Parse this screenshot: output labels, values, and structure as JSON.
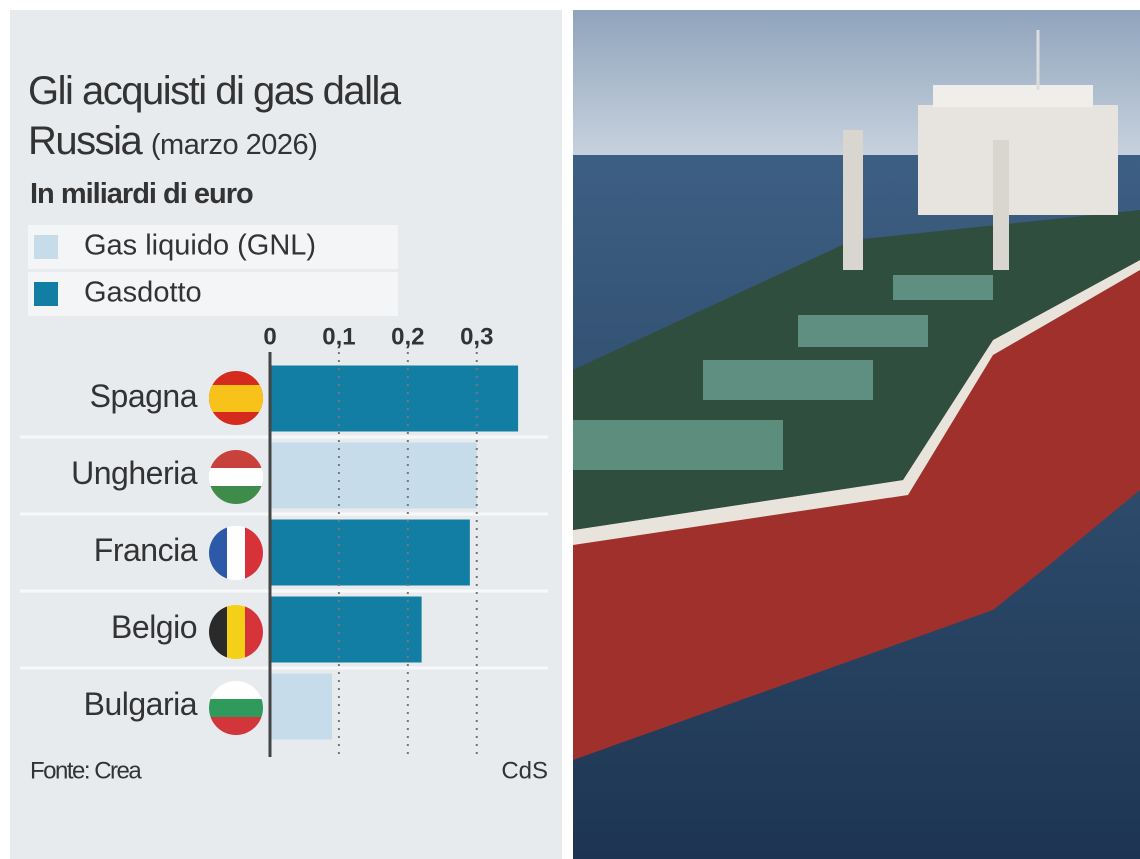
{
  "chart_data": {
    "type": "bar",
    "orientation": "horizontal",
    "title": "Gli acquisti di gas dalla Russia",
    "date": "(marzo 2026)",
    "subtitle": "In miliardi di euro",
    "categories": [
      "Spagna",
      "Ungheria",
      "Francia",
      "Belgio",
      "Bulgaria"
    ],
    "series": [
      {
        "name": "Gas liquido (GNL)",
        "color": "#c6dcea",
        "values": [
          null,
          0.3,
          null,
          null,
          0.09
        ]
      },
      {
        "name": "Gasdotto",
        "color": "#137ea3",
        "values": [
          0.36,
          null,
          0.29,
          0.22,
          null
        ]
      }
    ],
    "xlim": [
      0,
      0.37
    ],
    "xticks": [
      0,
      {
        "value": 0.1,
        "label": "0,1"
      },
      {
        "value": 0.2,
        "label": "0,2"
      },
      {
        "value": 0.3,
        "label": "0,3"
      }
    ],
    "grid": true,
    "source": "Fonte: Crea",
    "credit": "CdS"
  }
}
